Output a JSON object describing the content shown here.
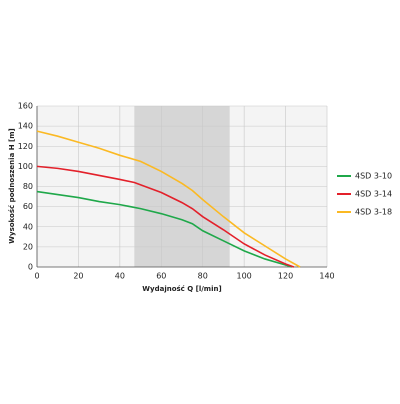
{
  "chart_data": {
    "type": "line",
    "x_label": "Wydajność Q [l/min]",
    "y_label": "Wysokość podnoszenia H [m]",
    "xlim": [
      0,
      140
    ],
    "xticks": [
      0,
      20,
      40,
      60,
      80,
      100,
      120,
      140
    ],
    "ylim": [
      0,
      160
    ],
    "yticks": [
      0,
      20,
      40,
      60,
      80,
      100,
      120,
      140,
      160
    ],
    "grid": true,
    "shaded_range": [
      47,
      93
    ],
    "legend": "right",
    "series": [
      {
        "name": "4SD 3-10",
        "color": "#1fa84a",
        "x": [
          0,
          10,
          20,
          30,
          40,
          50,
          60,
          70,
          75,
          80,
          90,
          100,
          110,
          120,
          123
        ],
        "values": [
          75,
          72,
          69,
          65,
          62,
          58,
          53,
          47,
          43,
          36,
          26,
          16,
          8,
          2,
          0
        ]
      },
      {
        "name": "4SD 3-14",
        "color": "#e3202a",
        "x": [
          0,
          10,
          20,
          30,
          40,
          47,
          60,
          70,
          75,
          80,
          90,
          100,
          110,
          120,
          124
        ],
        "values": [
          100,
          98,
          95,
          91,
          87,
          84,
          74,
          64,
          58,
          50,
          37,
          23,
          12,
          3,
          0
        ]
      },
      {
        "name": "4SD 3-18",
        "color": "#fbb923",
        "x": [
          0,
          10,
          20,
          30,
          40,
          50,
          60,
          70,
          75,
          80,
          90,
          100,
          110,
          120,
          127
        ],
        "values": [
          135,
          130,
          124,
          118,
          111,
          105,
          95,
          83,
          76,
          67,
          50,
          34,
          21,
          8,
          0
        ]
      }
    ]
  }
}
